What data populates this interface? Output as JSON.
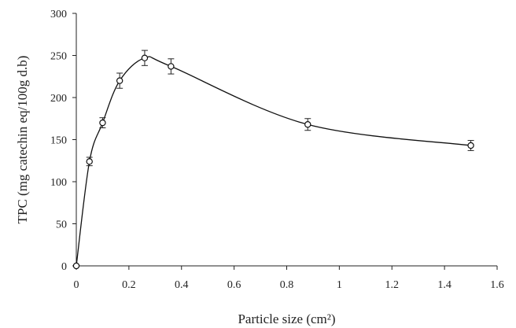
{
  "chart_data": {
    "type": "scatter",
    "title": "",
    "xlabel": "Particle size (cm²)",
    "ylabel": "TPC (mg catechin eq/100g d.b)",
    "xlim": [
      0,
      1.6
    ],
    "ylim": [
      0,
      300
    ],
    "xticks": [
      0,
      0.2,
      0.4,
      0.6,
      0.8,
      1,
      1.2,
      1.4,
      1.6
    ],
    "xtick_labels": [
      "0",
      "0.2",
      "0.4",
      "0.6",
      "0.8",
      "1",
      "1.2",
      "1.4",
      "1.6"
    ],
    "yticks": [
      0,
      50,
      100,
      150,
      200,
      250,
      300
    ],
    "ytick_labels": [
      "0",
      "50",
      "100",
      "150",
      "200",
      "250",
      "300"
    ],
    "grid": false,
    "legend": "none",
    "series": [
      {
        "marker": "open-circle",
        "fit_line": "smooth",
        "x": [
          0,
          0.05,
          0.1,
          0.165,
          0.26,
          0.36,
          0.88,
          1.5
        ],
        "y": [
          0,
          124,
          170,
          220,
          247,
          237,
          168,
          143
        ],
        "error": [
          0,
          5,
          6,
          9,
          9,
          9,
          7,
          6
        ]
      }
    ],
    "colors": {
      "axis": "#222222",
      "line": "#111111",
      "marker_fill": "#ffffff"
    }
  }
}
